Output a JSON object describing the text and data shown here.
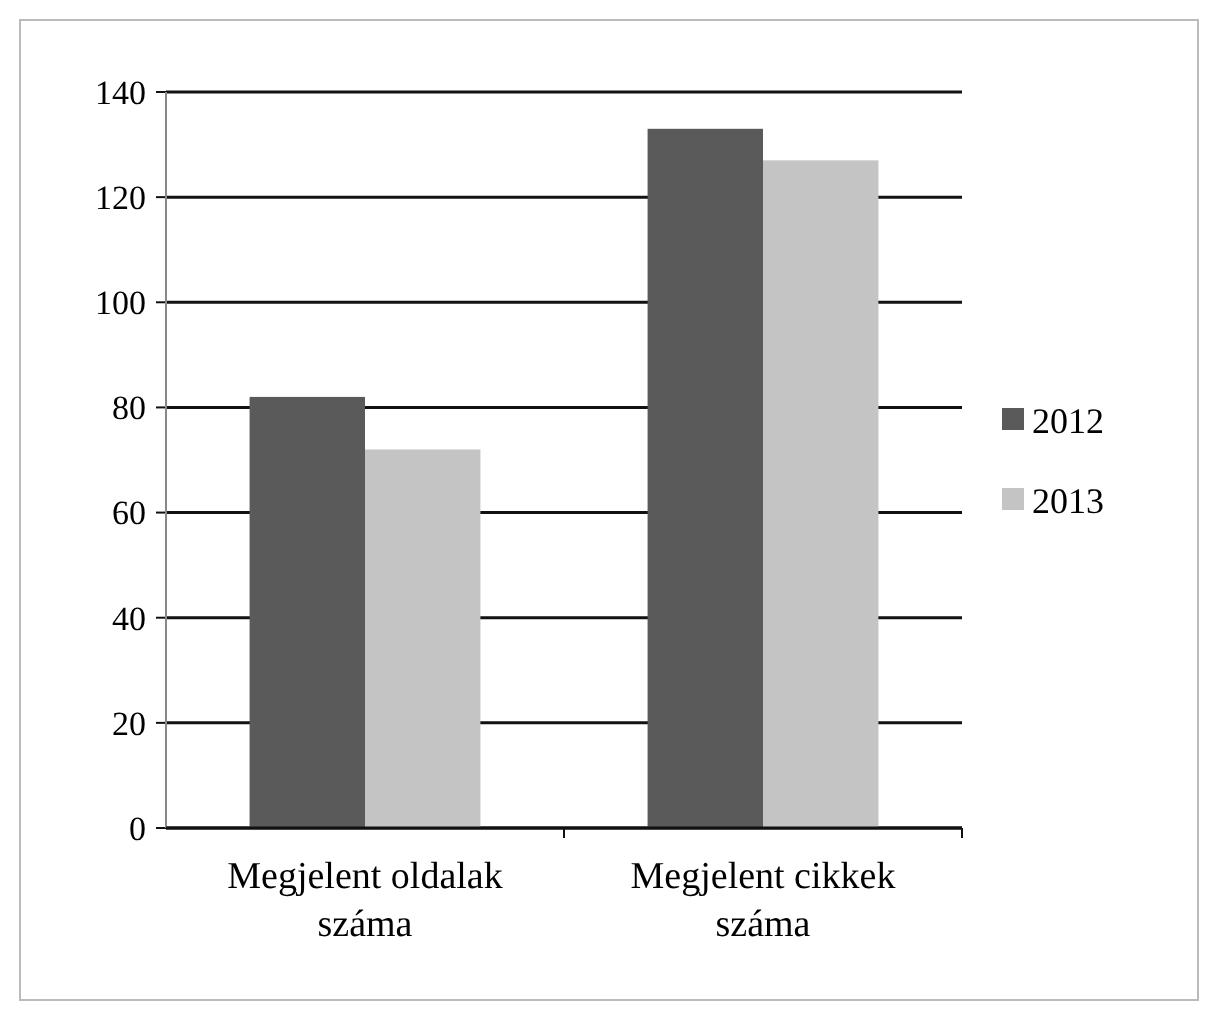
{
  "chart_data": {
    "type": "bar",
    "categories": [
      "Megjelent oldalak száma",
      "Megjelent cikkek száma"
    ],
    "series": [
      {
        "name": "2012",
        "color": "#5a5a5a",
        "values": [
          82,
          133
        ]
      },
      {
        "name": "2013",
        "color": "#c4c4c4",
        "values": [
          72,
          127
        ]
      }
    ],
    "ylim": [
      0,
      140
    ],
    "yticks": [
      0,
      20,
      40,
      60,
      80,
      100,
      120,
      140
    ],
    "grid": "y",
    "legend": "right"
  }
}
